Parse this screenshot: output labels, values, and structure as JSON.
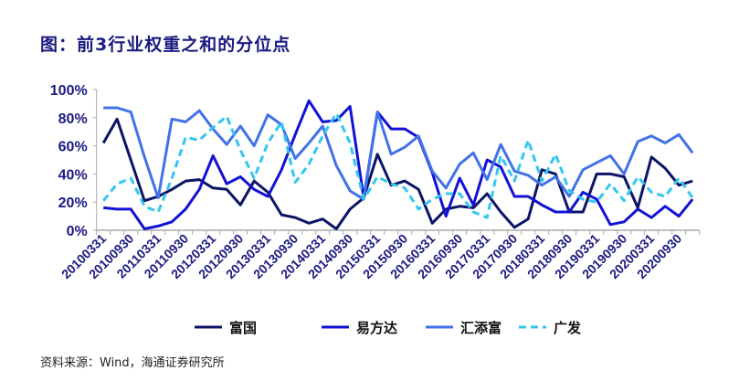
{
  "title": "图：前3行业权重之和的分位点",
  "source": "资料来源：Wind，海通证券研究所",
  "chart_data": {
    "type": "line",
    "title": "图：前3行业权重之和的分位点",
    "xlabel": "",
    "ylabel": "",
    "ylim": [
      0,
      100
    ],
    "yticks": [
      "0%",
      "20%",
      "40%",
      "60%",
      "80%",
      "100%"
    ],
    "xtick_labels": [
      "20100331",
      "20100930",
      "20110331",
      "20110930",
      "20120331",
      "20120930",
      "20130331",
      "20130930",
      "20140331",
      "20140930",
      "20150331",
      "20150930",
      "20160331",
      "20160930",
      "20170331",
      "20170930",
      "20180331",
      "20180930",
      "20190331",
      "20190930",
      "20200331",
      "20200930"
    ],
    "n_points": 44,
    "legend_position": "bottom",
    "series": [
      {
        "name": "富国",
        "color": "#0c1466",
        "dash": false,
        "values": [
          62,
          79,
          50,
          21,
          24,
          29,
          35,
          36,
          30,
          29,
          18,
          35,
          27,
          11,
          9,
          5,
          8,
          1,
          15,
          23,
          54,
          32,
          35,
          29,
          5,
          15,
          17,
          16,
          26,
          13,
          2,
          8,
          43,
          40,
          13,
          13,
          40,
          40,
          38,
          16,
          52,
          44,
          32,
          35
        ]
      },
      {
        "name": "易方达",
        "color": "#1212d4",
        "dash": false,
        "values": [
          16,
          15,
          15,
          1,
          3,
          6,
          15,
          29,
          53,
          33,
          38,
          29,
          24,
          43,
          68,
          92,
          77,
          78,
          88,
          23,
          84,
          72,
          72,
          66,
          41,
          10,
          37,
          18,
          50,
          45,
          24,
          24,
          18,
          13,
          13,
          27,
          22,
          4,
          6,
          15,
          9,
          17,
          10,
          22
        ]
      },
      {
        "name": "汇添富",
        "color": "#4272e8",
        "dash": false,
        "values": [
          87,
          87,
          84,
          52,
          23,
          79,
          77,
          85,
          72,
          61,
          74,
          60,
          82,
          75,
          51,
          62,
          74,
          46,
          28,
          22,
          84,
          54,
          59,
          67,
          42,
          30,
          47,
          55,
          36,
          61,
          42,
          39,
          32,
          38,
          24,
          43,
          48,
          53,
          40,
          63,
          67,
          62,
          68,
          55
        ]
      },
      {
        "name": "广发",
        "color": "#33c6f0",
        "dash": true,
        "values": [
          21,
          33,
          37,
          17,
          13,
          37,
          66,
          64,
          73,
          81,
          57,
          37,
          62,
          77,
          34,
          47,
          67,
          83,
          62,
          22,
          38,
          33,
          30,
          15,
          22,
          26,
          26,
          13,
          9,
          53,
          35,
          64,
          35,
          54,
          28,
          22,
          20,
          33,
          21,
          38,
          27,
          24,
          37,
          23
        ]
      }
    ]
  }
}
